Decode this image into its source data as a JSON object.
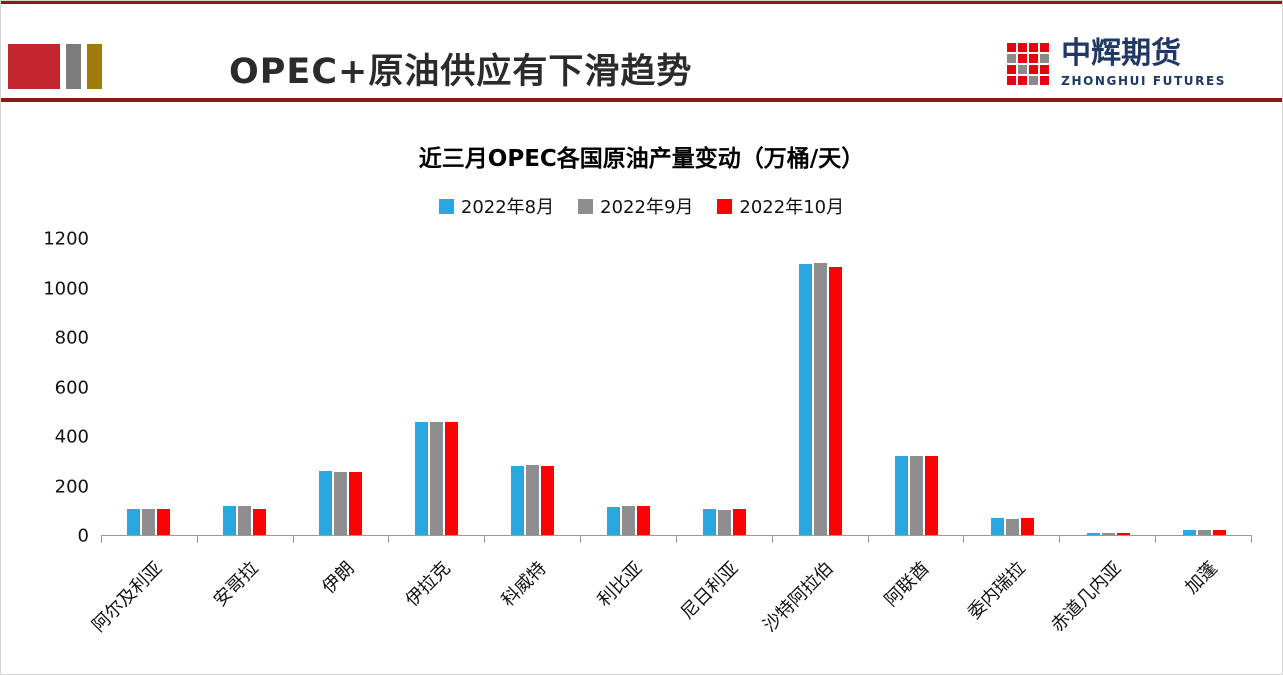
{
  "slide": {
    "header_title": "OPEC+原油供应有下滑趋势",
    "logo": {
      "icon": "red-squares-grid",
      "name": "中辉期货",
      "subtitle": "ZHONGHUI FUTURES"
    },
    "brand_colors": {
      "maroon_rule": "#8b1a17",
      "deco_red": "#c1272d",
      "deco_gray": "#7c7c7c",
      "deco_gold": "#9e7c0c",
      "logo_navy": "#1f3864",
      "logo_red": "#e60012"
    }
  },
  "chart_data": {
    "type": "bar",
    "title": "近三月OPEC各国原油产量变动（万桶/天）",
    "xlabel": "",
    "ylabel": "",
    "ylim": [
      0,
      1200
    ],
    "yticks": [
      0,
      200,
      400,
      600,
      800,
      1000,
      1200
    ],
    "grid": false,
    "legend_position": "top",
    "categories": [
      "阿尔及利亚",
      "安哥拉",
      "伊朗",
      "伊拉克",
      "科威特",
      "利比亚",
      "尼日利亚",
      "沙特阿拉伯",
      "阿联酋",
      "委内瑞拉",
      "赤道几内亚",
      "加蓬"
    ],
    "series": [
      {
        "name": "2022年8月",
        "color": "#29a8df",
        "values": [
          106,
          117,
          258,
          455,
          281,
          115,
          105,
          1095,
          320,
          68,
          10,
          20
        ]
      },
      {
        "name": "2022年9月",
        "color": "#8e8e8e",
        "values": [
          106,
          117,
          255,
          456,
          284,
          117,
          103,
          1100,
          320,
          66,
          8,
          19
        ]
      },
      {
        "name": "2022年10月",
        "color": "#fe0000",
        "values": [
          105,
          107,
          256,
          458,
          280,
          117,
          107,
          1085,
          321,
          68,
          9,
          21
        ]
      }
    ]
  }
}
